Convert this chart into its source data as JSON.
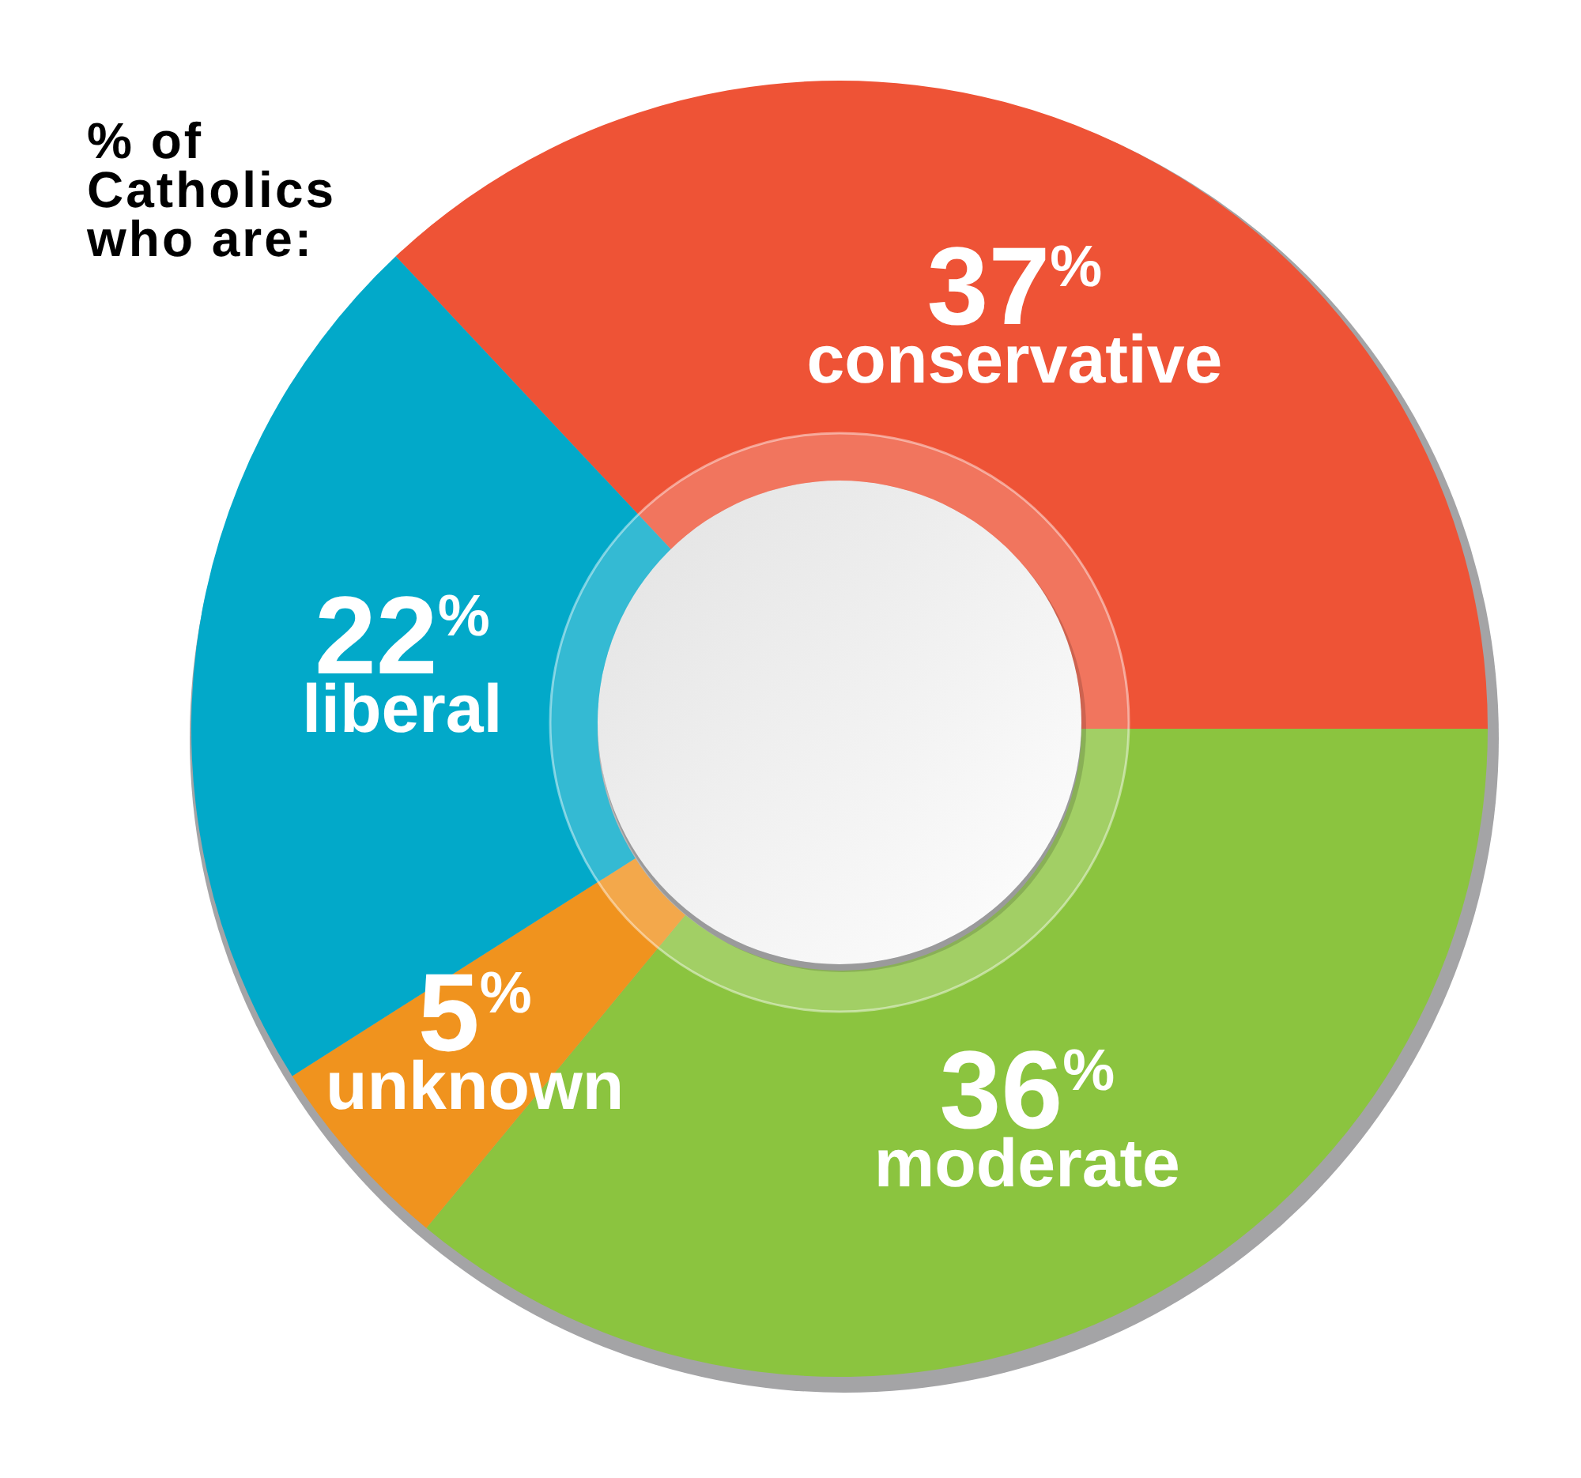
{
  "chart_data": {
    "type": "donut",
    "title": "% of Catholics who are:",
    "categories": [
      "conservative",
      "moderate",
      "unknown",
      "liberal"
    ],
    "values": [
      37,
      36,
      5,
      22
    ],
    "colors": [
      "#ee5336",
      "#8bc43f",
      "#f0931e",
      "#02a9c9"
    ],
    "value_labels": [
      "37$^{%}$",
      "36$^{%}$",
      "5$^{%}$",
      "22$^{%}$"
    ]
  }
}
